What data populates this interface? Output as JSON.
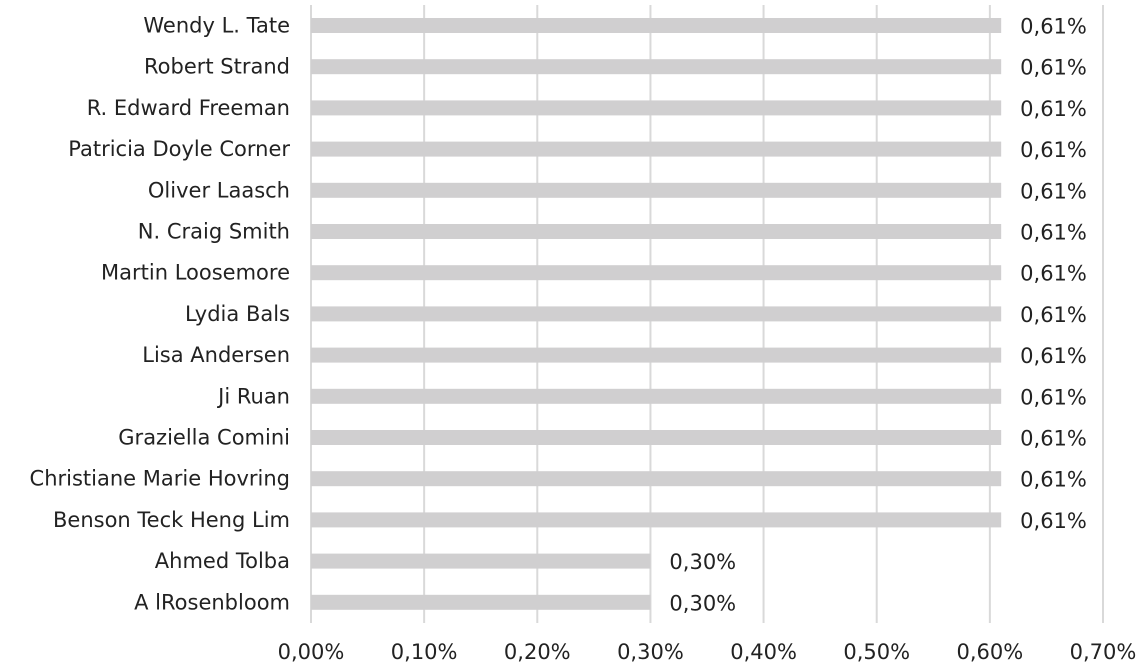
{
  "chart_data": {
    "type": "bar",
    "orientation": "horizontal",
    "title": "",
    "xlabel": "",
    "ylabel": "",
    "categories": [
      "Wendy L. Tate",
      "Robert Strand",
      "R. Edward Freeman",
      "Patricia Doyle Corner",
      "Oliver Laasch",
      "N. Craig Smith",
      "Martin Loosemore",
      "Lydia Bals",
      "Lisa Andersen",
      "Ji Ruan",
      "Graziella Comini",
      "Christiane Marie Hovring",
      "Benson Teck Heng Lim",
      "Ahmed Tolba",
      "A lRosenbloom"
    ],
    "values": [
      0.61,
      0.61,
      0.61,
      0.61,
      0.61,
      0.61,
      0.61,
      0.61,
      0.61,
      0.61,
      0.61,
      0.61,
      0.61,
      0.3,
      0.3
    ],
    "value_labels": [
      "0,61%",
      "0,61%",
      "0,61%",
      "0,61%",
      "0,61%",
      "0,61%",
      "0,61%",
      "0,61%",
      "0,61%",
      "0,61%",
      "0,61%",
      "0,61%",
      "0,61%",
      "0,30%",
      "0,30%"
    ],
    "xlim": [
      0,
      0.7
    ],
    "xticks": [
      0,
      0.1,
      0.2,
      0.3,
      0.4,
      0.5,
      0.6,
      0.7
    ],
    "xtick_labels": [
      "0,00%",
      "0,10%",
      "0,20%",
      "0,30%",
      "0,40%",
      "0,50%",
      "0,60%",
      "0,70%"
    ],
    "grid": "vertical",
    "legend": "none",
    "bar_color": "#d0cfd0",
    "grid_color": "#d9d9d9",
    "text_color": "#222222"
  }
}
